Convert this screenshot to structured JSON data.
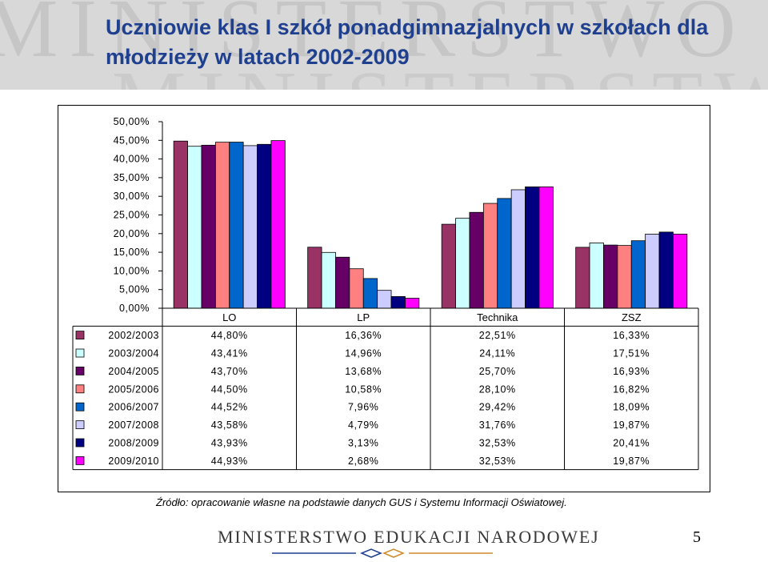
{
  "slide": {
    "title": "Uczniowie klas I szkół ponadgimnazjalnych w szkołach dla młodzieży w latach 2002-2009",
    "source": "Źródło: opracowanie własne na podstawie danych GUS i Systemu Informacji Oświatowej.",
    "footer_brand": "MINISTERSTWO EDUKACJI NARODOWEJ",
    "page_number": "5",
    "watermark_text": "MINISTERSTWO"
  },
  "chart_data": {
    "type": "bar",
    "categories": [
      "LO",
      "LP",
      "Technika",
      "ZSZ"
    ],
    "y_ticks": [
      "0,00%",
      "5,00%",
      "10,00%",
      "15,00%",
      "20,00%",
      "25,00%",
      "30,00%",
      "35,00%",
      "40,00%",
      "45,00%",
      "50,00%"
    ],
    "ylim": [
      0,
      50
    ],
    "grid": false,
    "legend": "data table below chart",
    "series": [
      {
        "name": "2002/2003",
        "color": "#993366",
        "values": [
          44.8,
          16.36,
          22.51,
          16.33
        ],
        "labels": [
          "44,80%",
          "16,36%",
          "22,51%",
          "16,33%"
        ]
      },
      {
        "name": "2003/2004",
        "color": "#ccffff",
        "values": [
          43.41,
          14.96,
          24.11,
          17.51
        ],
        "labels": [
          "43,41%",
          "14,96%",
          "24,11%",
          "17,51%"
        ]
      },
      {
        "name": "2004/2005",
        "color": "#660066",
        "values": [
          43.7,
          13.68,
          25.7,
          16.93
        ],
        "labels": [
          "43,70%",
          "13,68%",
          "25,70%",
          "16,93%"
        ]
      },
      {
        "name": "2005/2006",
        "color": "#ff8080",
        "values": [
          44.5,
          10.58,
          28.1,
          16.82
        ],
        "labels": [
          "44,50%",
          "10,58%",
          "28,10%",
          "16,82%"
        ]
      },
      {
        "name": "2006/2007",
        "color": "#0066cc",
        "values": [
          44.52,
          7.96,
          29.42,
          18.09
        ],
        "labels": [
          "44,52%",
          "7,96%",
          "29,42%",
          "18,09%"
        ]
      },
      {
        "name": "2007/2008",
        "color": "#ccccff",
        "values": [
          43.58,
          4.79,
          31.76,
          19.87
        ],
        "labels": [
          "43,58%",
          "4,79%",
          "31,76%",
          "19,87%"
        ]
      },
      {
        "name": "2008/2009",
        "color": "#000080",
        "values": [
          43.93,
          3.13,
          32.53,
          20.41
        ],
        "labels": [
          "43,93%",
          "3,13%",
          "32,53%",
          "20,41%"
        ]
      },
      {
        "name": "2009/2010",
        "color": "#ff00ff",
        "values": [
          44.93,
          2.68,
          32.53,
          19.87
        ],
        "labels": [
          "44,93%",
          "2,68%",
          "32,53%",
          "19,87%"
        ]
      }
    ]
  }
}
